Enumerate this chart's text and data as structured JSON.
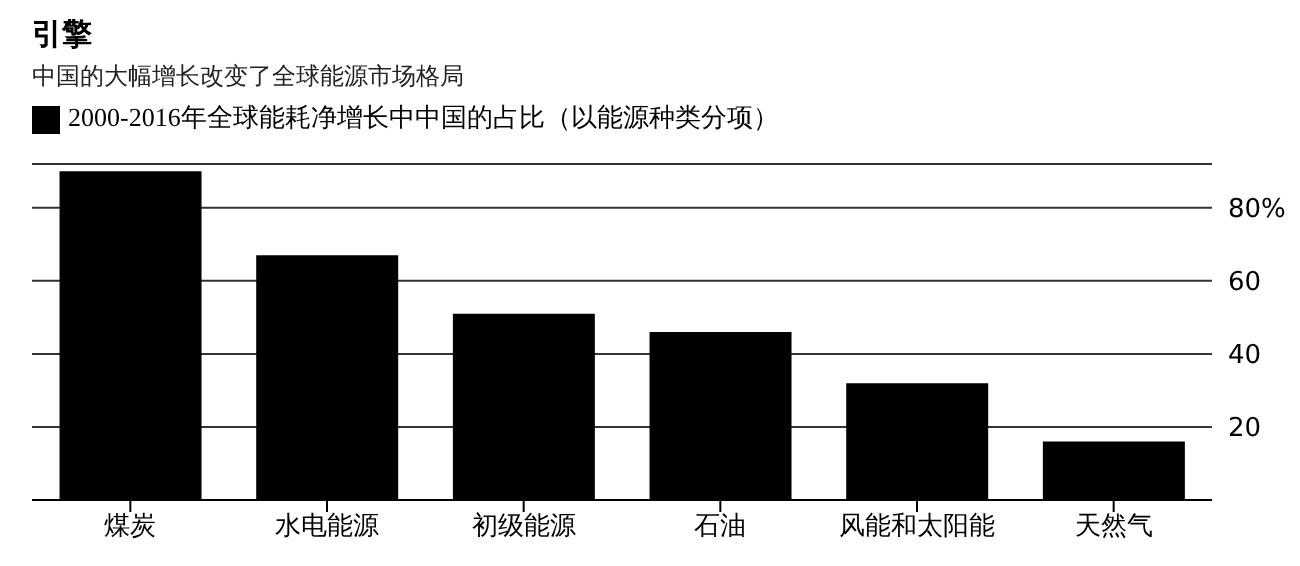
{
  "chart_data": {
    "type": "bar",
    "title": "引擎",
    "subtitle": "中国的大幅增长改变了全球能源市场格局",
    "categories": [
      "煤炭",
      "水电能源",
      "初级能源",
      "石油",
      "风能和太阳能",
      "天然气"
    ],
    "series": [
      {
        "name": "2000-2016年全球能耗净增长中中国的占比（以能源种类分项）",
        "color": "#000000",
        "values": [
          90,
          67,
          51,
          46,
          32,
          16
        ]
      }
    ],
    "ylim": [
      0,
      92
    ],
    "yticks": [
      20,
      40,
      60,
      {
        "value": 80,
        "label": "80%"
      }
    ],
    "grid": "y",
    "legend": "top left"
  }
}
